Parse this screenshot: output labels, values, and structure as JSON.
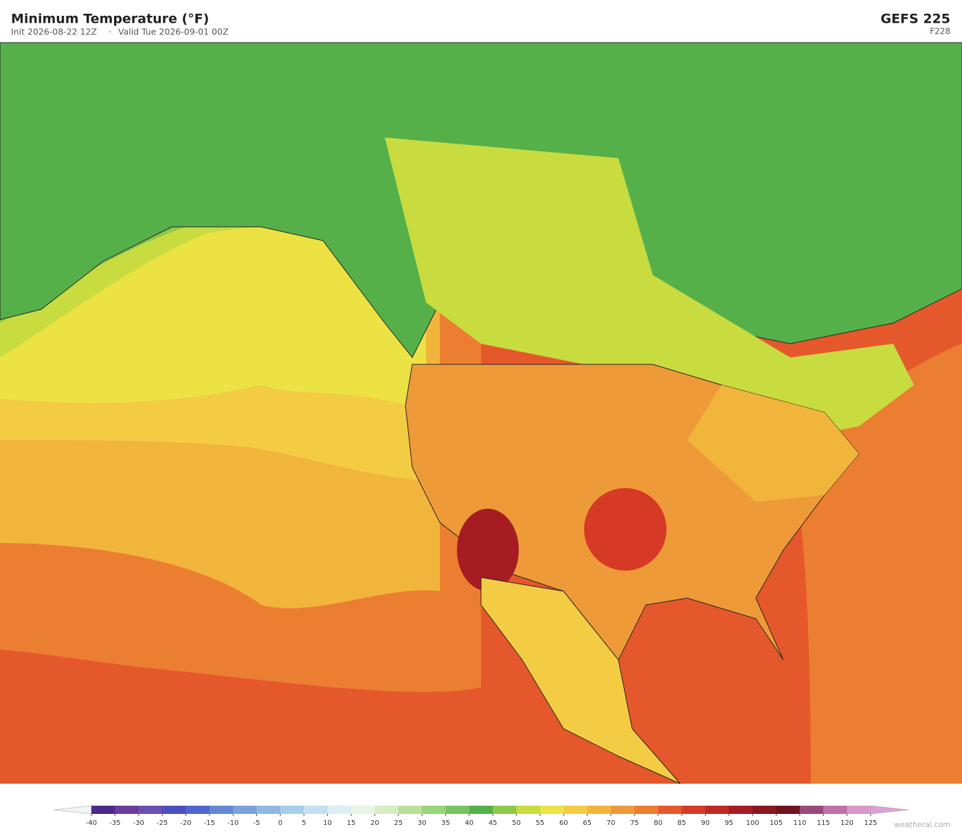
{
  "header": {
    "title": "Minimum Temperature  (°F)",
    "init": "Init 2026-08-22 12Z",
    "separator": "·",
    "valid": "Valid Tue 2026-09-01 00Z",
    "model": "GEFS  225",
    "forecast_hour": "F228"
  },
  "colorbar": {
    "levels": [
      -40,
      -35,
      -30,
      -25,
      -20,
      -15,
      -10,
      -5,
      0,
      5,
      10,
      15,
      20,
      25,
      30,
      35,
      40,
      45,
      50,
      55,
      60,
      65,
      70,
      75,
      80,
      85,
      90,
      95,
      100,
      105,
      110,
      115,
      120,
      125
    ],
    "colors": [
      "#4b2a8c",
      "#6a3d9a",
      "#6b4fb0",
      "#4a4fc0",
      "#4f66cc",
      "#6688d4",
      "#7aa2dc",
      "#8fb9e2",
      "#a6cde9",
      "#c2e0ef",
      "#dbeef3",
      "#e8f5e4",
      "#d4edc4",
      "#b8e09a",
      "#98d47a",
      "#78c462",
      "#55b04a",
      "#8fc94a",
      "#c8dc40",
      "#ece244",
      "#f4cc44",
      "#f2b53c",
      "#ee9a38",
      "#ec7e32",
      "#e5582c",
      "#d63a26",
      "#c02a24",
      "#a51d22",
      "#8a1620",
      "#701420",
      "#9a4a7a",
      "#c070a8",
      "#d898c8"
    ],
    "under_color": "#f4f4f8",
    "over_color": "#dca0d8"
  },
  "footer": {
    "credit": "weatherai.com"
  }
}
